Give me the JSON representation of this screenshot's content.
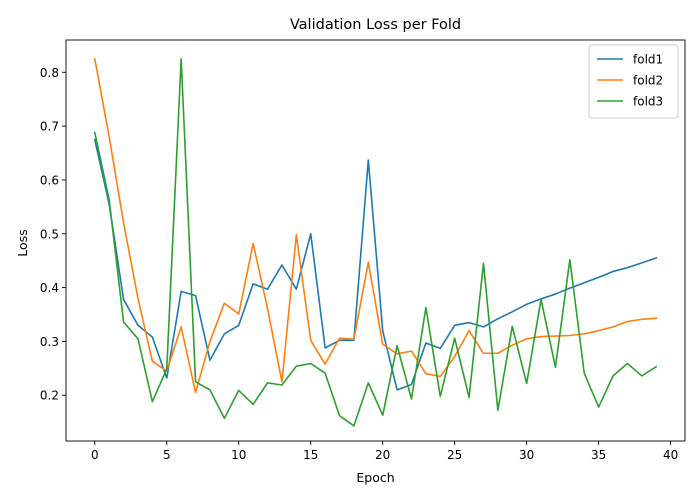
{
  "chart_data": {
    "type": "line",
    "title": "Validation Loss per Fold",
    "xlabel": "Epoch",
    "ylabel": "Loss",
    "xlim": [
      -2,
      41
    ],
    "ylim": [
      0.115,
      0.86
    ],
    "x_ticks": [
      0,
      5,
      10,
      15,
      20,
      25,
      30,
      35,
      40
    ],
    "y_ticks": [
      0.2,
      0.3,
      0.4,
      0.5,
      0.6,
      0.7,
      0.8
    ],
    "grid": false,
    "legend_position": "top-right",
    "x": [
      0,
      1,
      2,
      3,
      4,
      5,
      6,
      7,
      8,
      9,
      10,
      11,
      12,
      13,
      14,
      15,
      16,
      17,
      18,
      19,
      20,
      21,
      22,
      23,
      24,
      25,
      26,
      27,
      28,
      29,
      30,
      31,
      32,
      33,
      34,
      35,
      36,
      37,
      38,
      39
    ],
    "series": [
      {
        "name": "fold1",
        "color": "#1f77b4",
        "values": [
          0.675,
          0.555,
          0.378,
          0.33,
          0.308,
          0.232,
          0.393,
          0.385,
          0.265,
          0.314,
          0.33,
          0.407,
          0.397,
          0.442,
          0.397,
          0.5,
          0.288,
          0.302,
          0.302,
          0.637,
          0.32,
          0.21,
          0.22,
          0.297,
          0.287,
          0.33,
          0.335,
          0.327,
          0.342,
          0.355,
          0.369,
          0.379,
          0.388,
          0.399,
          0.409,
          0.419,
          0.43,
          0.437,
          0.446,
          0.455
        ]
      },
      {
        "name": "fold2",
        "color": "#ff7f0e",
        "values": [
          0.825,
          0.68,
          0.52,
          0.38,
          0.263,
          0.245,
          0.327,
          0.205,
          0.3,
          0.371,
          0.351,
          0.482,
          0.361,
          0.225,
          0.498,
          0.302,
          0.258,
          0.306,
          0.304,
          0.447,
          0.295,
          0.277,
          0.282,
          0.24,
          0.235,
          0.272,
          0.32,
          0.278,
          0.278,
          0.293,
          0.305,
          0.309,
          0.31,
          0.311,
          0.314,
          0.32,
          0.327,
          0.337,
          0.341,
          0.343
        ]
      },
      {
        "name": "fold3",
        "color": "#2ca02c",
        "values": [
          0.688,
          0.563,
          0.336,
          0.305,
          0.188,
          0.249,
          0.825,
          0.225,
          0.21,
          0.157,
          0.209,
          0.183,
          0.223,
          0.219,
          0.254,
          0.259,
          0.241,
          0.162,
          0.143,
          0.223,
          0.163,
          0.292,
          0.193,
          0.363,
          0.198,
          0.306,
          0.196,
          0.445,
          0.172,
          0.328,
          0.222,
          0.378,
          0.252,
          0.452,
          0.241,
          0.178,
          0.236,
          0.259,
          0.236,
          0.253
        ]
      }
    ]
  }
}
